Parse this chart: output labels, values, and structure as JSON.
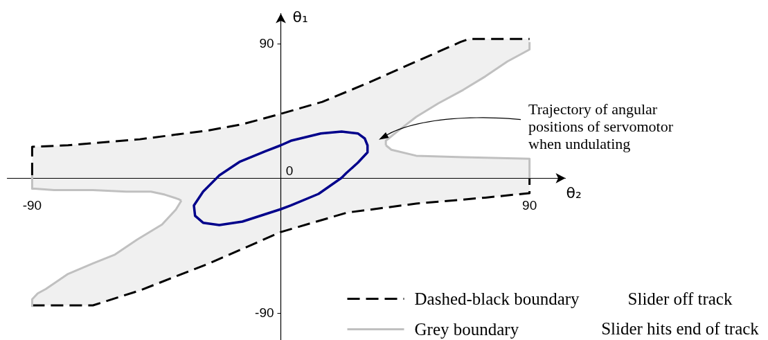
{
  "chart_data": {
    "type": "line",
    "xlabel": "θ₂",
    "ylabel": "θ₁",
    "xlim": [
      -99,
      103
    ],
    "ylim": [
      -108,
      110
    ],
    "xticks": [
      -90,
      90
    ],
    "yticks": [
      -90,
      90
    ],
    "grid": false,
    "legend": "bottom right",
    "marker": "none",
    "line_style": "solid",
    "annotations": [
      "Trajectory of angular positions of servomotor when undulating",
      "0",
      "Slider off track",
      "Slider hits end of track"
    ],
    "series": [
      {
        "name": "Dashed-black boundary",
        "color": "#000000",
        "line_style": "dashed",
        "x": [
          -90,
          -90,
          -77,
          -51,
          -26,
          -14,
          0,
          15,
          32,
          49,
          65,
          68,
          90
        ],
        "values": [
          2,
          21,
          22,
          26,
          32,
          36,
          43,
          51,
          64,
          78,
          91,
          93,
          93
        ]
      },
      {
        "color": "#000000",
        "line_style": "dashed",
        "x": [
          -90,
          -68,
          -51,
          -26,
          0,
          24,
          49,
          74,
          90,
          90
        ],
        "values": [
          -85,
          -85,
          -75,
          -57,
          -36,
          -23,
          -17,
          -13,
          -10,
          0
        ]
      },
      {
        "name": "Grey boundary",
        "color": "#c0c0c0",
        "x": [
          38,
          38,
          42,
          49,
          57,
          66,
          74,
          82,
          90,
          90
        ],
        "values": [
          22,
          25,
          31,
          41,
          50,
          59,
          68,
          78,
          86,
          91
        ]
      },
      {
        "color": "#c0c0c0",
        "x": [
          38,
          40,
          49,
          66,
          90,
          90
        ],
        "values": [
          22,
          19,
          15,
          14,
          13,
          0
        ]
      },
      {
        "color": "#c0c0c0",
        "x": [
          -90,
          -90,
          -89,
          -82,
          -68,
          -56,
          -47,
          -42,
          -37,
          -36
        ],
        "values": [
          2,
          -7,
          -7,
          -8,
          -8,
          -9,
          -9,
          -11,
          -14,
          -15
        ]
      },
      {
        "color": "#c0c0c0",
        "x": [
          -90,
          -90,
          -88,
          -85,
          -77,
          -68,
          -60,
          -52,
          -43,
          -38,
          -36
        ],
        "values": [
          -86,
          -81,
          -77,
          -74,
          -64,
          -57,
          -51,
          -41,
          -31,
          -21,
          -15
        ]
      }
    ]
  }
}
